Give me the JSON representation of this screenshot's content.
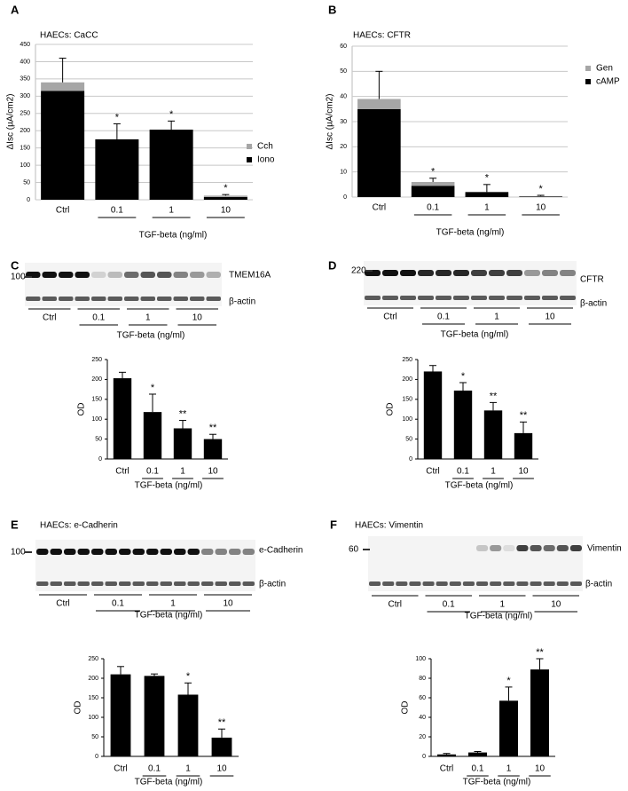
{
  "chart_data": [
    {
      "type": "bar",
      "stacked": true,
      "panel": "A",
      "title": "HAECs:  CaCC",
      "y_label": "ΔIsc (µA/cm2)",
      "x_label": "TGF-beta (ng/ml)",
      "categories": [
        "Ctrl",
        "0.1",
        "1",
        "10"
      ],
      "series": [
        {
          "name": "Iono",
          "color": "#000000",
          "values": [
            315,
            175,
            203,
            8
          ]
        },
        {
          "name": "Cch",
          "color": "#a6a6a6",
          "values": [
            25,
            0,
            0,
            4
          ]
        }
      ],
      "errors": [
        70,
        45,
        25,
        3
      ],
      "annotations": [
        null,
        "*",
        "*",
        "*"
      ],
      "ylim": [
        0,
        450
      ],
      "yticks": [
        0,
        50,
        100,
        150,
        200,
        250,
        300,
        350,
        400,
        450
      ],
      "grid": true,
      "legend": "right"
    },
    {
      "type": "bar",
      "stacked": true,
      "panel": "B",
      "title": "HAECs:  CFTR",
      "y_label": "ΔIsc (µA/cm2)",
      "x_label": "TGF-beta (ng/ml)",
      "categories": [
        "Ctrl",
        "0.1",
        "1",
        "10"
      ],
      "series": [
        {
          "name": "cAMP",
          "color": "#000000",
          "values": [
            35,
            4.5,
            2,
            0.2
          ]
        },
        {
          "name": "Gen",
          "color": "#a6a6a6",
          "values": [
            4,
            1.5,
            0,
            0.2
          ]
        }
      ],
      "errors": [
        11,
        1.5,
        3,
        0.3
      ],
      "annotations": [
        null,
        "*",
        "*",
        "*"
      ],
      "ylim": [
        0,
        60
      ],
      "yticks": [
        0,
        10,
        20,
        30,
        40,
        50,
        60
      ],
      "grid": true,
      "legend": "right"
    },
    {
      "type": "bar",
      "panel": "C",
      "y_label": "OD",
      "x_label": "TGF-beta (ng/ml)",
      "categories": [
        "Ctrl",
        "0.1",
        "1",
        "10"
      ],
      "values": [
        203,
        118,
        77,
        50
      ],
      "errors": [
        15,
        45,
        20,
        12
      ],
      "color": "#000000",
      "annotations": [
        null,
        "*",
        "**",
        "**"
      ],
      "ylim": [
        0,
        250
      ],
      "yticks": [
        0,
        50,
        100,
        150,
        200,
        250
      ],
      "grid": false
    },
    {
      "type": "bar",
      "panel": "D",
      "y_label": "OD",
      "x_label": "TGF-beta (ng/ml)",
      "categories": [
        "Ctrl",
        "0.1",
        "1",
        "10"
      ],
      "values": [
        220,
        172,
        122,
        65
      ],
      "errors": [
        15,
        20,
        20,
        28
      ],
      "color": "#000000",
      "annotations": [
        null,
        "*",
        "**",
        "**"
      ],
      "ylim": [
        0,
        250
      ],
      "yticks": [
        0,
        50,
        100,
        150,
        200,
        250
      ],
      "grid": false
    },
    {
      "type": "bar",
      "panel": "E",
      "title": "HAECs: e-Cadherin",
      "y_label": "OD",
      "x_label": "TGF-beta (ng/ml)",
      "categories": [
        "Ctrl",
        "0.1",
        "1",
        "10"
      ],
      "values": [
        210,
        206,
        158,
        48
      ],
      "errors": [
        20,
        5,
        30,
        22
      ],
      "color": "#000000",
      "annotations": [
        null,
        null,
        "*",
        "**"
      ],
      "ylim": [
        0,
        250
      ],
      "yticks": [
        0,
        50,
        100,
        150,
        200,
        250
      ],
      "grid": false
    },
    {
      "type": "bar",
      "panel": "F",
      "title": "HAECs:  Vimentin",
      "y_label": "OD",
      "x_label": "TGF-beta (ng/ml)",
      "categories": [
        "Ctrl",
        "0.1",
        "1",
        "10"
      ],
      "values": [
        2,
        4,
        57,
        89
      ],
      "errors": [
        1,
        1,
        14,
        11
      ],
      "color": "#000000",
      "annotations": [
        null,
        null,
        "*",
        "**"
      ],
      "ylim": [
        0,
        100
      ],
      "yticks": [
        0,
        20,
        40,
        60,
        80,
        100
      ],
      "grid": false
    }
  ],
  "blots": [
    {
      "marker": "100",
      "protein": "TMEM16A",
      "control": "β-actin",
      "categories": [
        "Ctrl",
        "0.1",
        "1",
        "10"
      ],
      "x_label": "TGF-beta (ng/ml)"
    },
    {
      "marker": "220",
      "protein": "CFTR",
      "control": "β-actin",
      "categories": [
        "Ctrl",
        "0.1",
        "1",
        "10"
      ],
      "x_label": "TGF-beta (ng/ml)"
    },
    {
      "marker": "100",
      "protein": "e-Cadherin",
      "control": "β-actin",
      "categories": [
        "Ctrl",
        "0.1",
        "1",
        "10"
      ],
      "x_label": "TGF-beta (ng/ml)"
    },
    {
      "marker": "60",
      "protein": "Vimentin",
      "control": "β-actin",
      "categories": [
        "Ctrl",
        "0.1",
        "1",
        "10"
      ],
      "x_label": "TGF-beta (ng/ml)"
    }
  ]
}
